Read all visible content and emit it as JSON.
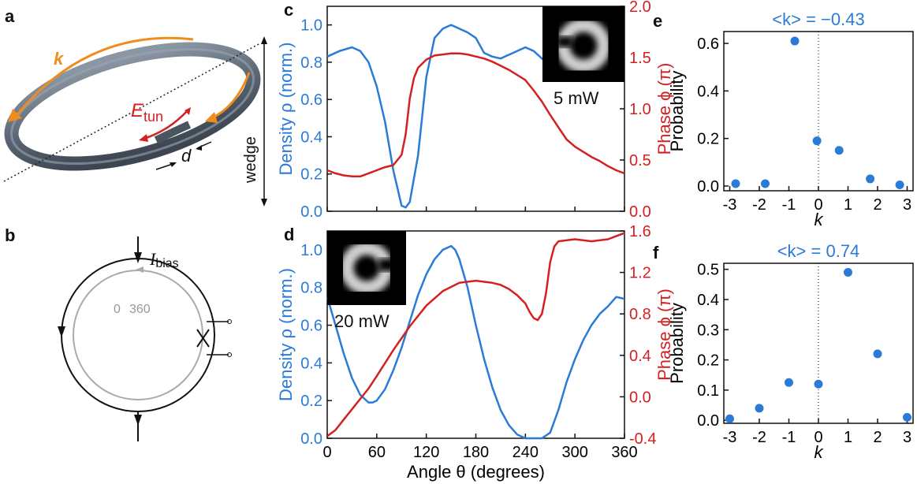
{
  "panels": {
    "a": {
      "letter": "a",
      "k_label": "k",
      "etun_main": "E",
      "etun_sub": "tun",
      "d_label": "d",
      "wedge_label": "wedge"
    },
    "b": {
      "letter": "b",
      "ibias_main": "I",
      "ibias_sub": "bias",
      "angle_start": "0",
      "angle_end": "360"
    }
  },
  "colors": {
    "density": "#2a7bd8",
    "phase": "#d42020",
    "orange": "#f08c1c",
    "ring": "#5d6a78"
  },
  "chart_data": [
    {
      "id": "c",
      "letter": "c",
      "type": "line",
      "inset_label": "5 mW",
      "ylabel_left": "Density ρ (norm.)",
      "ylabel_right": "Phase ϕ (π)",
      "xlim": [
        0,
        360
      ],
      "ylim_left": [
        0,
        1.1
      ],
      "ylim_right": [
        0,
        2.0
      ],
      "yticks_left": [
        "0.0",
        "0.2",
        "0.4",
        "0.6",
        "0.8",
        "1.0"
      ],
      "yticks_right": [
        "0.0",
        "0.5",
        "1.0",
        "1.5",
        "2.0"
      ],
      "series": [
        {
          "name": "density",
          "axis": "left",
          "x": [
            0,
            15,
            30,
            40,
            50,
            60,
            70,
            80,
            90,
            95,
            100,
            110,
            120,
            130,
            140,
            150,
            160,
            170,
            180,
            190,
            200,
            210,
            220,
            230,
            240,
            250,
            260,
            270
          ],
          "y": [
            0.83,
            0.86,
            0.88,
            0.86,
            0.8,
            0.67,
            0.48,
            0.22,
            0.03,
            0.02,
            0.05,
            0.3,
            0.72,
            0.93,
            0.98,
            1.0,
            0.98,
            0.96,
            0.93,
            0.85,
            0.83,
            0.82,
            0.84,
            0.86,
            0.88,
            0.86,
            0.82,
            0.78
          ]
        },
        {
          "name": "phase",
          "axis": "right",
          "x": [
            0,
            10,
            20,
            30,
            40,
            50,
            60,
            70,
            80,
            90,
            95,
            100,
            105,
            110,
            120,
            130,
            140,
            150,
            160,
            170,
            180,
            190,
            200,
            210,
            220,
            230,
            240,
            250,
            260,
            270,
            280,
            290,
            300,
            310,
            320,
            330,
            340,
            350,
            360
          ],
          "y": [
            0.4,
            0.37,
            0.35,
            0.34,
            0.34,
            0.37,
            0.4,
            0.43,
            0.45,
            0.55,
            0.75,
            1.1,
            1.3,
            1.4,
            1.48,
            1.52,
            1.53,
            1.54,
            1.54,
            1.53,
            1.51,
            1.49,
            1.46,
            1.42,
            1.38,
            1.33,
            1.28,
            1.18,
            1.07,
            0.94,
            0.82,
            0.7,
            0.63,
            0.58,
            0.53,
            0.49,
            0.44,
            0.4,
            0.37
          ]
        }
      ]
    },
    {
      "id": "d",
      "letter": "d",
      "type": "line",
      "inset_label": "20 mW",
      "xlabel": "Angle θ (degrees)",
      "ylabel_left": "Density ρ (norm.)",
      "ylabel_right": "Phase ϕ (π)",
      "xlim": [
        0,
        360
      ],
      "ylim_left": [
        0,
        1.1
      ],
      "ylim_right": [
        -0.4,
        1.6
      ],
      "xticks": [
        "0",
        "60",
        "120",
        "180",
        "240",
        "300",
        "360"
      ],
      "yticks_left": [
        "0.0",
        "0.2",
        "0.4",
        "0.6",
        "0.8",
        "1.0"
      ],
      "yticks_right": [
        "-0.4",
        "0.0",
        "0.4",
        "0.8",
        "1.2",
        "1.6"
      ],
      "series": [
        {
          "name": "density",
          "axis": "left",
          "x": [
            0,
            10,
            20,
            30,
            40,
            50,
            55,
            60,
            70,
            80,
            90,
            100,
            110,
            120,
            130,
            140,
            150,
            155,
            160,
            170,
            180,
            190,
            200,
            210,
            220,
            230,
            240,
            250,
            260,
            270,
            280,
            290,
            300,
            310,
            320,
            330,
            340,
            350,
            360
          ],
          "y": [
            0.75,
            0.6,
            0.45,
            0.32,
            0.23,
            0.19,
            0.19,
            0.2,
            0.26,
            0.36,
            0.48,
            0.62,
            0.76,
            0.87,
            0.95,
            1.0,
            1.02,
            1.0,
            0.95,
            0.8,
            0.6,
            0.42,
            0.27,
            0.15,
            0.07,
            0.02,
            0.0,
            0.0,
            0.0,
            0.03,
            0.15,
            0.3,
            0.42,
            0.52,
            0.6,
            0.66,
            0.7,
            0.75,
            0.74
          ]
        },
        {
          "name": "phase",
          "axis": "right",
          "x": [
            0,
            10,
            20,
            30,
            40,
            50,
            60,
            80,
            100,
            120,
            140,
            160,
            180,
            200,
            210,
            220,
            230,
            240,
            245,
            250,
            255,
            260,
            265,
            270,
            275,
            280,
            300,
            320,
            340,
            350,
            360
          ],
          "y": [
            -0.38,
            -0.32,
            -0.22,
            -0.12,
            -0.02,
            0.08,
            0.2,
            0.45,
            0.68,
            0.88,
            1.02,
            1.1,
            1.12,
            1.1,
            1.08,
            1.04,
            0.98,
            0.9,
            0.82,
            0.76,
            0.74,
            0.8,
            1.0,
            1.3,
            1.45,
            1.5,
            1.52,
            1.5,
            1.52,
            1.55,
            1.58
          ]
        }
      ]
    },
    {
      "id": "e",
      "letter": "e",
      "type": "scatter",
      "title": "<k> = −0.43",
      "xlabel": "k",
      "ylabel": "Probability",
      "xlim": [
        -3.2,
        3.2
      ],
      "ylim": [
        -0.02,
        0.65
      ],
      "xticks": [
        "-3",
        "-2",
        "-1",
        "0",
        "1",
        "2",
        "3"
      ],
      "yticks": [
        "0.0",
        "0.2",
        "0.4",
        "0.6"
      ],
      "x": [
        -2.8,
        -1.8,
        -0.8,
        -0.05,
        0.7,
        1.75,
        2.75
      ],
      "values": [
        0.01,
        0.01,
        0.61,
        0.19,
        0.15,
        0.03,
        0.005
      ]
    },
    {
      "id": "f",
      "letter": "f",
      "type": "scatter",
      "title": "<k> = 0.74",
      "xlabel": "k",
      "ylabel": "Probability",
      "xlim": [
        -3.2,
        3.2
      ],
      "ylim": [
        -0.01,
        0.52
      ],
      "xticks": [
        "-3",
        "-2",
        "-1",
        "0",
        "1",
        "2",
        "3"
      ],
      "yticks": [
        "0.0",
        "0.1",
        "0.2",
        "0.3",
        "0.4",
        "0.5"
      ],
      "x": [
        -3,
        -2,
        -1,
        0,
        1,
        2,
        3
      ],
      "values": [
        0.005,
        0.04,
        0.125,
        0.12,
        0.49,
        0.22,
        0.01
      ]
    }
  ]
}
